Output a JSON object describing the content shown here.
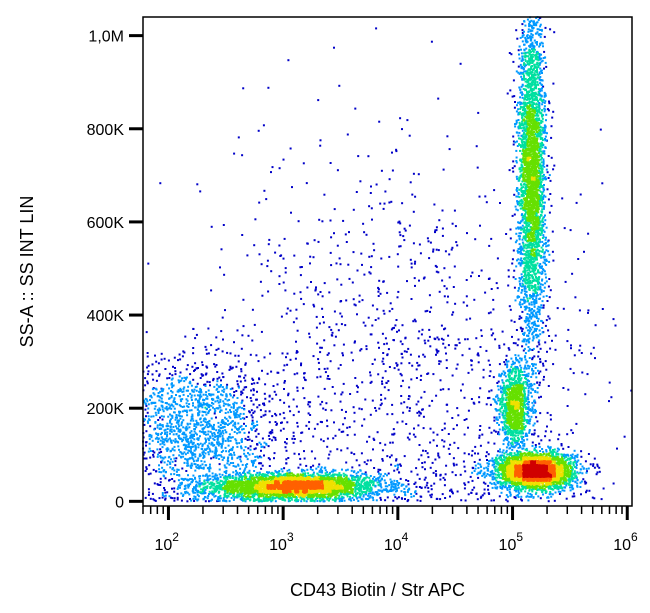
{
  "chart_data": {
    "type": "scatter",
    "subtype": "flow-cytometry-density-dot-plot",
    "title": "",
    "xlabel": "CD43 Biotin / Str APC",
    "ylabel": "SS-A :: SS INT LIN",
    "x_scale": "log",
    "xlim": [
      60,
      1100000
    ],
    "y_scale": "linear",
    "ylim": [
      -10000,
      1040000
    ],
    "x_ticks": [
      {
        "value": 100,
        "base": "10",
        "exp": "2"
      },
      {
        "value": 1000,
        "base": "10",
        "exp": "3"
      },
      {
        "value": 10000,
        "base": "10",
        "exp": "4"
      },
      {
        "value": 100000,
        "base": "10",
        "exp": "5"
      },
      {
        "value": 1000000,
        "base": "10",
        "exp": "6"
      }
    ],
    "y_ticks": [
      {
        "value": 0,
        "label": "0"
      },
      {
        "value": 200000,
        "label": "200K"
      },
      {
        "value": 400000,
        "label": "400K"
      },
      {
        "value": 600000,
        "label": "600K"
      },
      {
        "value": 800000,
        "label": "800K"
      },
      {
        "value": 1000000,
        "label": "1,0M"
      }
    ],
    "grid": false,
    "legend": "none",
    "density_colors": [
      "#0000c8",
      "#0099ff",
      "#00e0a0",
      "#66e000",
      "#f0e000",
      "#ff6000",
      "#d00000"
    ],
    "populations": [
      {
        "x_log_center": 3.1,
        "x_log_sd": 0.38,
        "y_center": 32000,
        "y_sd": 14000,
        "relative_count": 0.24
      },
      {
        "x_log_center": 5.2,
        "x_log_sd": 0.17,
        "y_center": 65000,
        "y_sd": 20000,
        "relative_count": 0.22
      },
      {
        "x_log_center": 5.17,
        "x_log_sd": 0.06,
        "y_center": 700000,
        "y_sd": 180000,
        "relative_count": 0.24
      },
      {
        "x_log_center": 5.02,
        "x_log_sd": 0.07,
        "y_center": 205000,
        "y_sd": 45000,
        "relative_count": 0.08
      },
      {
        "x_log_center": 2.25,
        "x_log_sd": 0.35,
        "y_center": 150000,
        "y_sd": 80000,
        "relative_count": 0.12
      },
      {
        "x_log_center": 4.1,
        "x_log_sd": 0.9,
        "y_center": 250000,
        "y_sd": 250000,
        "relative_count": 0.1
      }
    ]
  }
}
